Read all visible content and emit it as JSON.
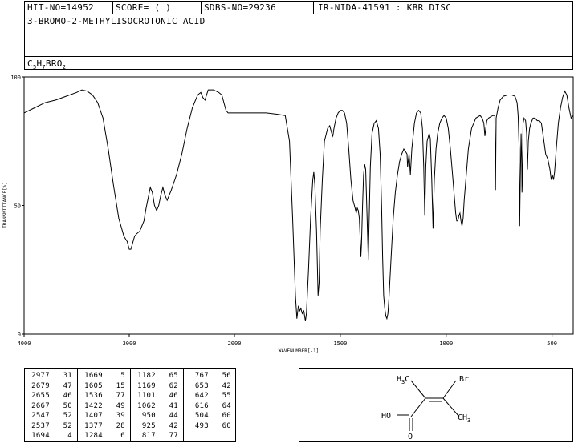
{
  "header": {
    "hit_no": "HIT-NO=14952",
    "score": "SCORE=  (   )",
    "sdbs_no": "SDBS-NO=29236",
    "ir_info": "IR-NIDA-41591 : KBR DISC",
    "compound_name": "3-BROMO-2-METHYLISOCROTONIC ACID",
    "formula": {
      "C": "C",
      "c_sub": "5",
      "H": "H",
      "h_sub": "7",
      "rest": "BRO",
      "o_sub": "2"
    }
  },
  "chart_data": {
    "type": "line",
    "title": "",
    "xlabel": "WAVENUMBER[-1]",
    "ylabel": "TRANSMITTANCE[%]",
    "xlim": [
      4000,
      400
    ],
    "ylim": [
      0,
      100
    ],
    "x_ticks": [
      "4000",
      "3000",
      "2000",
      "1500",
      "1000",
      "500"
    ],
    "x_tick_values": [
      4000,
      3000,
      2000,
      1500,
      1000,
      500
    ],
    "y_ticks": [
      "100",
      "50",
      "0"
    ],
    "y_tick_values": [
      100,
      50,
      0
    ],
    "series": [
      {
        "points": [
          [
            4000,
            86
          ],
          [
            3900,
            88
          ],
          [
            3800,
            90
          ],
          [
            3700,
            91
          ],
          [
            3600,
            92.5
          ],
          [
            3500,
            94
          ],
          [
            3450,
            95
          ],
          [
            3400,
            94.5
          ],
          [
            3350,
            93
          ],
          [
            3300,
            90
          ],
          [
            3250,
            84
          ],
          [
            3200,
            72
          ],
          [
            3150,
            58
          ],
          [
            3100,
            45
          ],
          [
            3050,
            38
          ],
          [
            3020,
            36
          ],
          [
            3000,
            33
          ],
          [
            2985,
            33
          ],
          [
            2970,
            35
          ],
          [
            2950,
            38
          ],
          [
            2930,
            39
          ],
          [
            2900,
            40
          ],
          [
            2880,
            42
          ],
          [
            2860,
            44
          ],
          [
            2840,
            49
          ],
          [
            2820,
            53
          ],
          [
            2800,
            57
          ],
          [
            2780,
            55
          ],
          [
            2760,
            50
          ],
          [
            2740,
            48
          ],
          [
            2720,
            50
          ],
          [
            2700,
            54
          ],
          [
            2680,
            57
          ],
          [
            2660,
            54
          ],
          [
            2640,
            52
          ],
          [
            2600,
            56
          ],
          [
            2550,
            62
          ],
          [
            2500,
            70
          ],
          [
            2450,
            80
          ],
          [
            2400,
            88
          ],
          [
            2350,
            93
          ],
          [
            2320,
            94
          ],
          [
            2300,
            92
          ],
          [
            2280,
            91
          ],
          [
            2250,
            95
          ],
          [
            2200,
            95
          ],
          [
            2150,
            94
          ],
          [
            2120,
            93
          ],
          [
            2100,
            90
          ],
          [
            2080,
            87
          ],
          [
            2060,
            86
          ],
          [
            2000,
            86
          ],
          [
            1850,
            86
          ],
          [
            1800,
            85.5
          ],
          [
            1760,
            85
          ],
          [
            1740,
            75
          ],
          [
            1725,
            45
          ],
          [
            1712,
            15
          ],
          [
            1705,
            6
          ],
          [
            1698,
            11
          ],
          [
            1692,
            9
          ],
          [
            1686,
            10
          ],
          [
            1680,
            8
          ],
          [
            1672,
            9
          ],
          [
            1665,
            5
          ],
          [
            1660,
            8
          ],
          [
            1650,
            25
          ],
          [
            1640,
            45
          ],
          [
            1630,
            60
          ],
          [
            1625,
            63
          ],
          [
            1620,
            58
          ],
          [
            1612,
            40
          ],
          [
            1605,
            15
          ],
          [
            1600,
            20
          ],
          [
            1595,
            40
          ],
          [
            1585,
            60
          ],
          [
            1575,
            75
          ],
          [
            1560,
            80
          ],
          [
            1550,
            81
          ],
          [
            1540,
            78
          ],
          [
            1535,
            77
          ],
          [
            1530,
            80
          ],
          [
            1520,
            84
          ],
          [
            1510,
            86
          ],
          [
            1500,
            87
          ],
          [
            1490,
            87
          ],
          [
            1480,
            86
          ],
          [
            1470,
            82
          ],
          [
            1460,
            72
          ],
          [
            1450,
            60
          ],
          [
            1440,
            52
          ],
          [
            1430,
            49
          ],
          [
            1425,
            47
          ],
          [
            1420,
            49
          ],
          [
            1415,
            48
          ],
          [
            1410,
            45
          ],
          [
            1407,
            39
          ],
          [
            1403,
            30
          ],
          [
            1400,
            35
          ],
          [
            1395,
            50
          ],
          [
            1390,
            62
          ],
          [
            1385,
            66
          ],
          [
            1380,
            64
          ],
          [
            1375,
            50
          ],
          [
            1370,
            35
          ],
          [
            1368,
            29
          ],
          [
            1365,
            40
          ],
          [
            1358,
            65
          ],
          [
            1350,
            78
          ],
          [
            1340,
            82
          ],
          [
            1330,
            83
          ],
          [
            1320,
            80
          ],
          [
            1312,
            70
          ],
          [
            1305,
            50
          ],
          [
            1300,
            30
          ],
          [
            1295,
            15
          ],
          [
            1290,
            10
          ],
          [
            1285,
            7
          ],
          [
            1280,
            6
          ],
          [
            1275,
            8
          ],
          [
            1270,
            14
          ],
          [
            1260,
            30
          ],
          [
            1250,
            45
          ],
          [
            1240,
            55
          ],
          [
            1230,
            62
          ],
          [
            1220,
            67
          ],
          [
            1210,
            70
          ],
          [
            1200,
            72
          ],
          [
            1192,
            71
          ],
          [
            1185,
            70
          ],
          [
            1182,
            65
          ],
          [
            1178,
            68
          ],
          [
            1175,
            70
          ],
          [
            1169,
            62
          ],
          [
            1162,
            72
          ],
          [
            1150,
            82
          ],
          [
            1140,
            86
          ],
          [
            1130,
            87
          ],
          [
            1120,
            86
          ],
          [
            1112,
            80
          ],
          [
            1106,
            65
          ],
          [
            1101,
            46
          ],
          [
            1096,
            65
          ],
          [
            1090,
            75
          ],
          [
            1080,
            78
          ],
          [
            1075,
            76
          ],
          [
            1068,
            60
          ],
          [
            1062,
            41
          ],
          [
            1056,
            60
          ],
          [
            1048,
            72
          ],
          [
            1040,
            78
          ],
          [
            1030,
            82
          ],
          [
            1020,
            84
          ],
          [
            1010,
            85
          ],
          [
            1000,
            84
          ],
          [
            990,
            80
          ],
          [
            980,
            72
          ],
          [
            970,
            62
          ],
          [
            960,
            52
          ],
          [
            955,
            47
          ],
          [
            950,
            44
          ],
          [
            945,
            44
          ],
          [
            940,
            46
          ],
          [
            935,
            47
          ],
          [
            930,
            44
          ],
          [
            925,
            42
          ],
          [
            920,
            45
          ],
          [
            915,
            52
          ],
          [
            905,
            62
          ],
          [
            895,
            72
          ],
          [
            880,
            80
          ],
          [
            860,
            84
          ],
          [
            840,
            85
          ],
          [
            830,
            84
          ],
          [
            822,
            82
          ],
          [
            817,
            77
          ],
          [
            813,
            80
          ],
          [
            808,
            83
          ],
          [
            800,
            84
          ],
          [
            780,
            85
          ],
          [
            770,
            85
          ],
          [
            767,
            56
          ],
          [
            764,
            84
          ],
          [
            755,
            88
          ],
          [
            745,
            91
          ],
          [
            730,
            92.5
          ],
          [
            710,
            93
          ],
          [
            690,
            93
          ],
          [
            675,
            92.5
          ],
          [
            665,
            90
          ],
          [
            660,
            85
          ],
          [
            655,
            72
          ],
          [
            653,
            42
          ],
          [
            650,
            60
          ],
          [
            646,
            78
          ],
          [
            643,
            66
          ],
          [
            642,
            55
          ],
          [
            640,
            60
          ],
          [
            637,
            82
          ],
          [
            632,
            84
          ],
          [
            625,
            83
          ],
          [
            620,
            78
          ],
          [
            616,
            64
          ],
          [
            612,
            75
          ],
          [
            606,
            80
          ],
          [
            600,
            82
          ],
          [
            590,
            84
          ],
          [
            580,
            84
          ],
          [
            570,
            83
          ],
          [
            560,
            83
          ],
          [
            550,
            82
          ],
          [
            540,
            76
          ],
          [
            530,
            70
          ],
          [
            520,
            68
          ],
          [
            510,
            64
          ],
          [
            504,
            60
          ],
          [
            499,
            62
          ],
          [
            493,
            60
          ],
          [
            488,
            63
          ],
          [
            480,
            72
          ],
          [
            470,
            82
          ],
          [
            460,
            88
          ],
          [
            450,
            92
          ],
          [
            440,
            94.5
          ],
          [
            430,
            93
          ],
          [
            420,
            88
          ],
          [
            410,
            84
          ],
          [
            400,
            85
          ]
        ]
      }
    ]
  },
  "peak_table": {
    "columns": [
      [
        [
          "2977",
          "31"
        ],
        [
          "2679",
          "47"
        ],
        [
          "2655",
          "46"
        ],
        [
          "2667",
          "50"
        ],
        [
          "2547",
          "52"
        ],
        [
          "2537",
          "52"
        ],
        [
          "1694",
          "4"
        ]
      ],
      [
        [
          "1669",
          "5"
        ],
        [
          "1605",
          "15"
        ],
        [
          "1536",
          "77"
        ],
        [
          "1422",
          "49"
        ],
        [
          "1407",
          "39"
        ],
        [
          "1377",
          "28"
        ],
        [
          "1284",
          "6"
        ]
      ],
      [
        [
          "1182",
          "65"
        ],
        [
          "1169",
          "62"
        ],
        [
          "1101",
          "46"
        ],
        [
          "1062",
          "41"
        ],
        [
          "950",
          "44"
        ],
        [
          "925",
          "42"
        ],
        [
          "817",
          "77"
        ]
      ],
      [
        [
          "767",
          "56"
        ],
        [
          "653",
          "42"
        ],
        [
          "642",
          "55"
        ],
        [
          "616",
          "64"
        ],
        [
          "504",
          "60"
        ],
        [
          "493",
          "60"
        ],
        [
          "",
          ""
        ]
      ]
    ]
  },
  "structure": {
    "ch3_top_left": "H",
    "ch3_top_left_sub": "3",
    "ch3_top_left_c": "C",
    "br": "Br",
    "ho": "HO",
    "o": "O",
    "ch3_right": "CH",
    "ch3_right_sub": "3"
  }
}
